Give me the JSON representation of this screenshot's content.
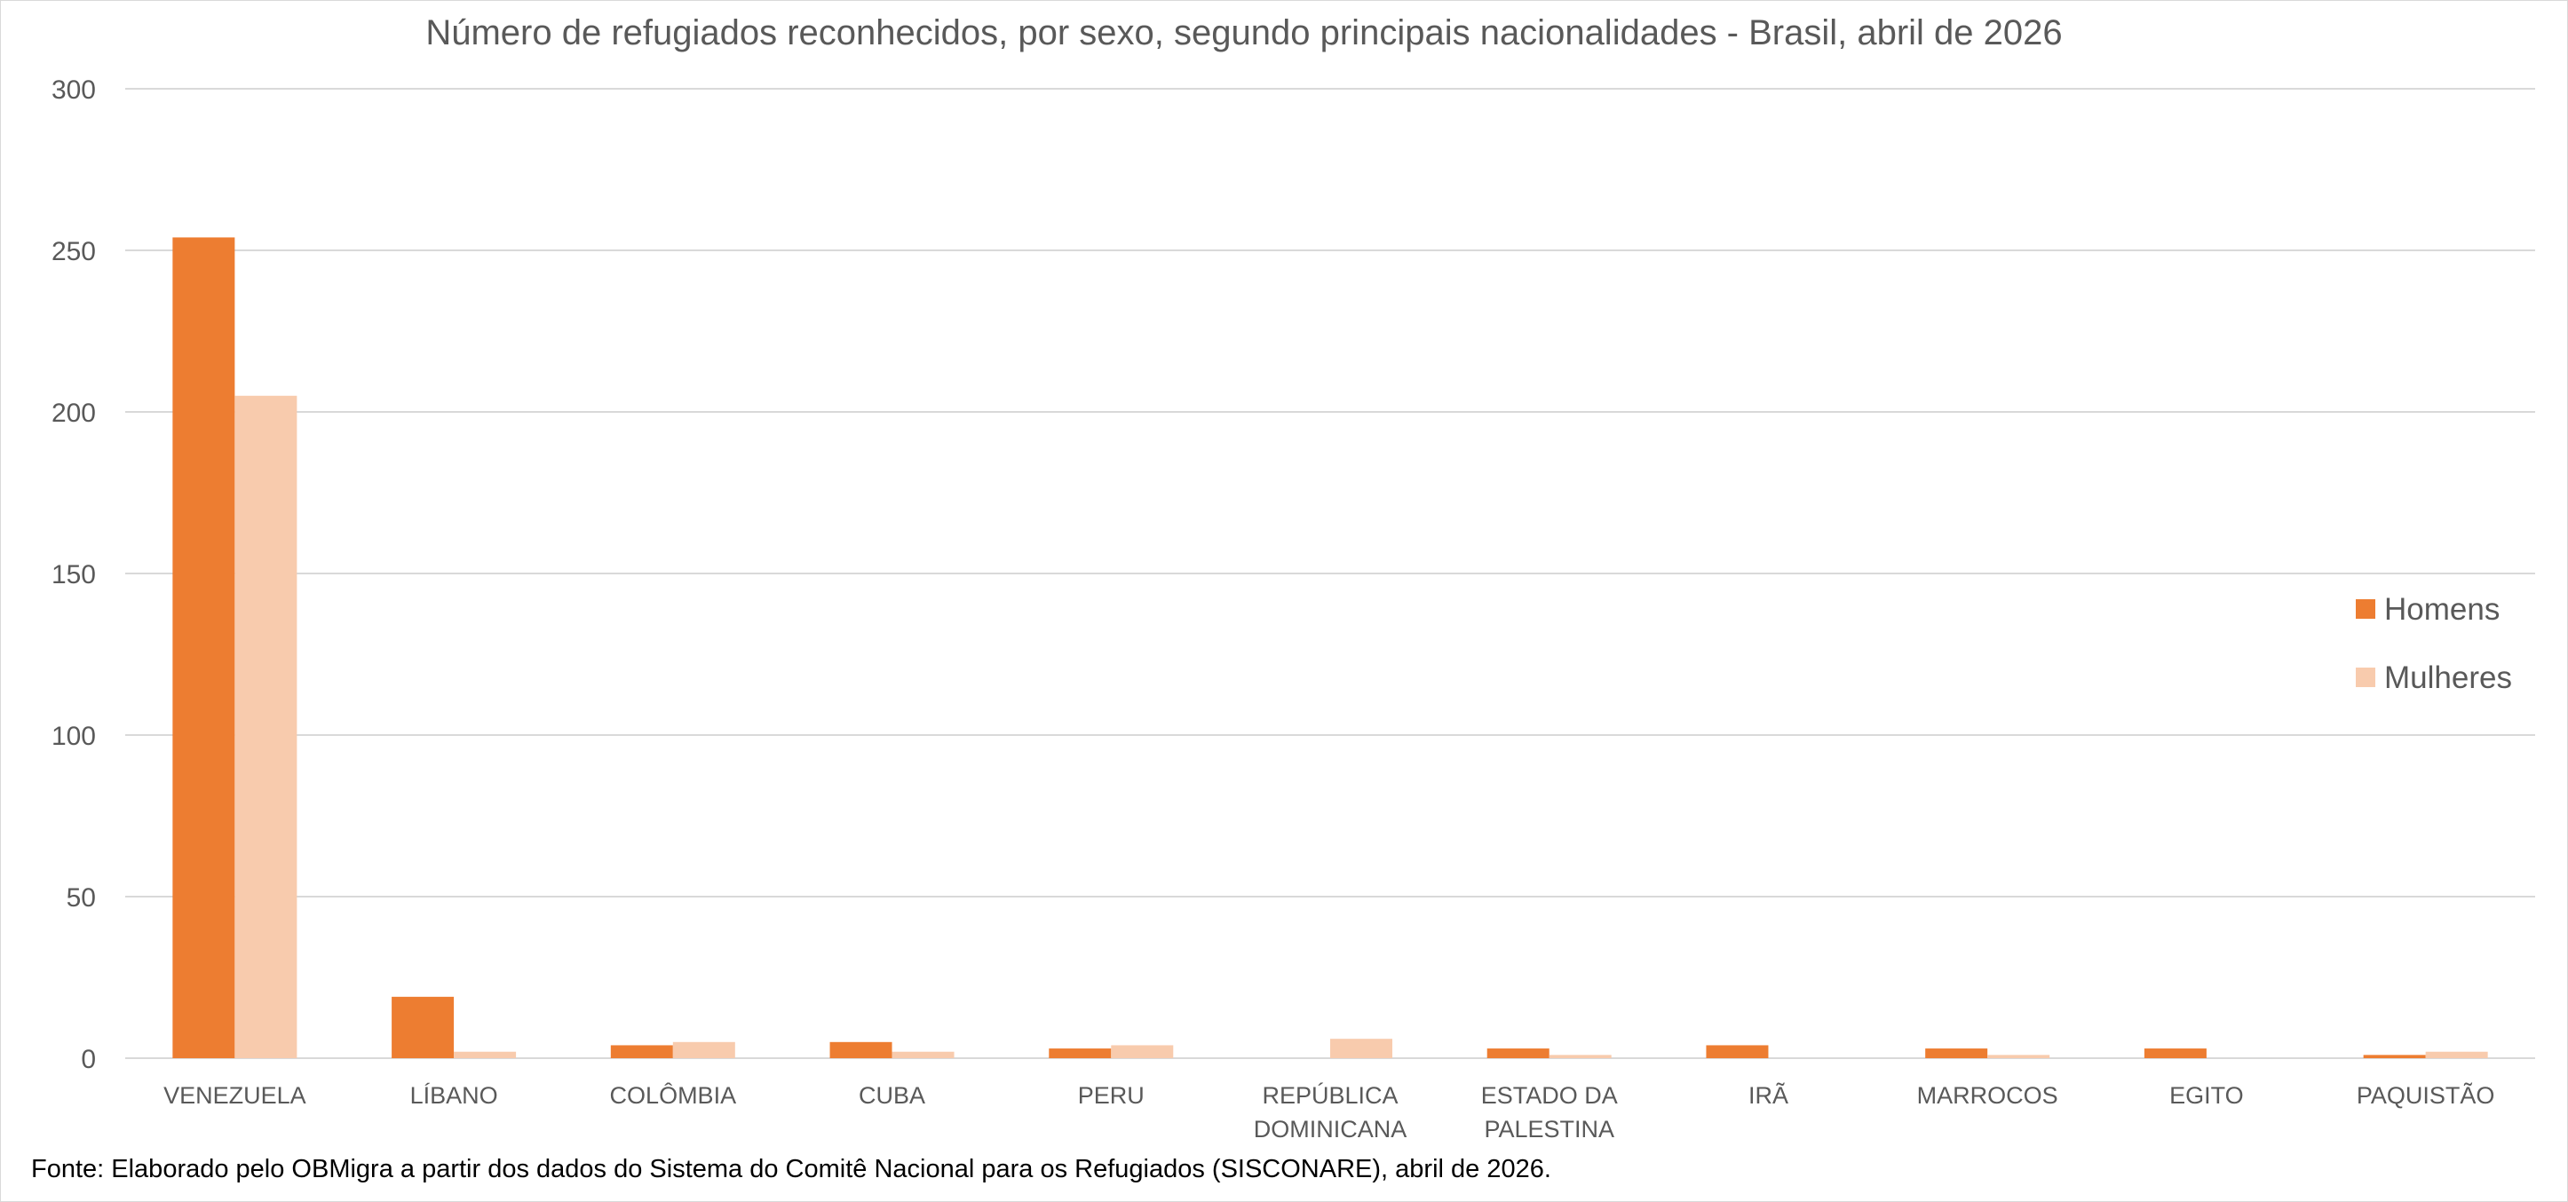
{
  "colors": {
    "homens": "#ED7D31",
    "mulheres": "#F8CBAD",
    "grid": "#d9d9d9",
    "text": "#595959"
  },
  "chart_data": {
    "type": "bar",
    "title": "Número de refugiados reconhecidos, por sexo, segundo principais nacionalidades - Brasil, abril de 2026",
    "categories": [
      [
        "VENEZUELA"
      ],
      [
        "LÍBANO"
      ],
      [
        "COLÔMBIA"
      ],
      [
        "CUBA"
      ],
      [
        "PERU"
      ],
      [
        "REPÚBLICA",
        "DOMINICANA"
      ],
      [
        "ESTADO DA",
        "PALESTINA"
      ],
      [
        "IRÃ"
      ],
      [
        "MARROCOS"
      ],
      [
        "EGITO"
      ],
      [
        "PAQUISTÃO"
      ]
    ],
    "series": [
      {
        "name": "Homens",
        "values": [
          254,
          19,
          4,
          5,
          3,
          0,
          3,
          4,
          3,
          3,
          1
        ]
      },
      {
        "name": "Mulheres",
        "values": [
          205,
          2,
          5,
          2,
          4,
          6,
          1,
          0,
          1,
          0,
          2
        ]
      }
    ],
    "ylim": [
      0,
      300
    ],
    "yticks": [
      0,
      50,
      100,
      150,
      200,
      250,
      300
    ],
    "grid": true,
    "legend": "right"
  },
  "footnote": "Fonte: Elaborado pelo OBMigra a partir dos dados  do Sistema do Comitê Nacional para os Refugiados (SISCONARE), abril de 2026."
}
